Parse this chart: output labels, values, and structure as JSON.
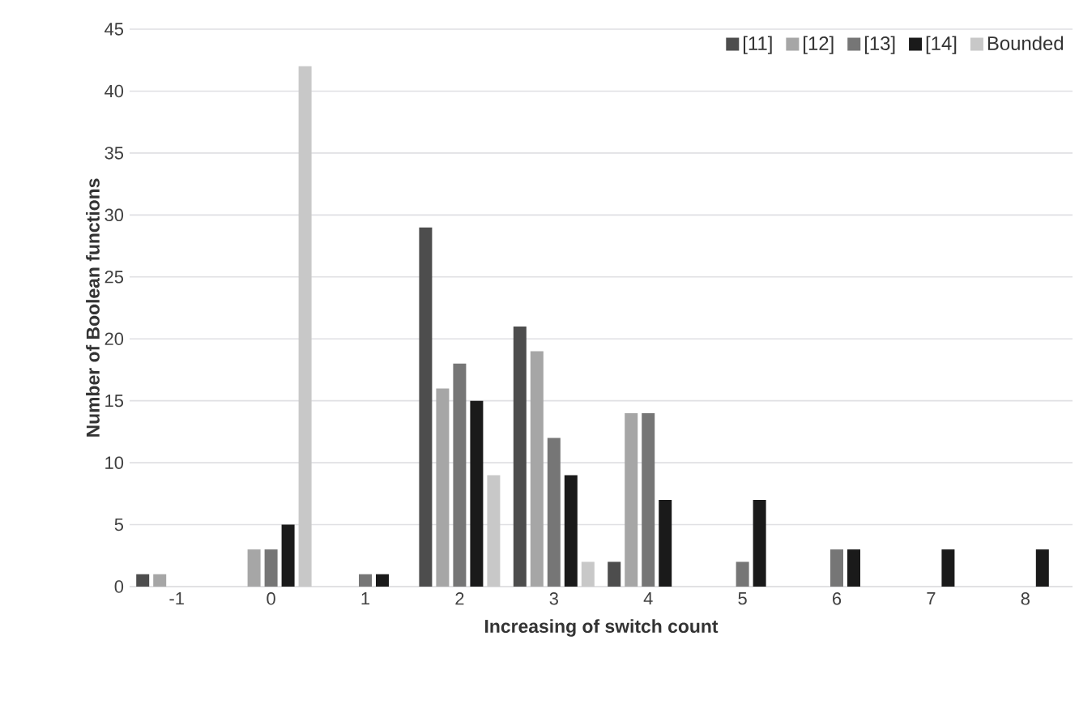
{
  "chart_data": {
    "type": "bar",
    "xlabel": "Increasing of switch count",
    "ylabel": "Number of  Boolean functions",
    "categories": [
      "-1",
      "0",
      "1",
      "2",
      "3",
      "4",
      "5",
      "6",
      "7",
      "8"
    ],
    "series": [
      {
        "name": "[11]",
        "color": "#4d4d4d",
        "values": [
          1,
          null,
          null,
          29,
          21,
          2,
          null,
          null,
          null,
          null
        ]
      },
      {
        "name": "[12]",
        "color": "#a6a6a6",
        "values": [
          1,
          3,
          null,
          16,
          19,
          14,
          null,
          null,
          null,
          null
        ]
      },
      {
        "name": "[13]",
        "color": "#767676",
        "values": [
          null,
          3,
          1,
          18,
          12,
          14,
          2,
          3,
          null,
          null
        ]
      },
      {
        "name": "[14]",
        "color": "#1a1a1a",
        "values": [
          null,
          5,
          1,
          15,
          9,
          7,
          7,
          3,
          3,
          3
        ]
      },
      {
        "name": "Bounded",
        "color": "#c8c8c8",
        "values": [
          null,
          42,
          null,
          9,
          2,
          null,
          null,
          null,
          null,
          null
        ]
      }
    ],
    "ylim": [
      0,
      45
    ],
    "yticks": [
      0,
      5,
      10,
      15,
      20,
      25,
      30,
      35,
      40,
      45
    ],
    "grid": "y",
    "legend": "top right"
  }
}
